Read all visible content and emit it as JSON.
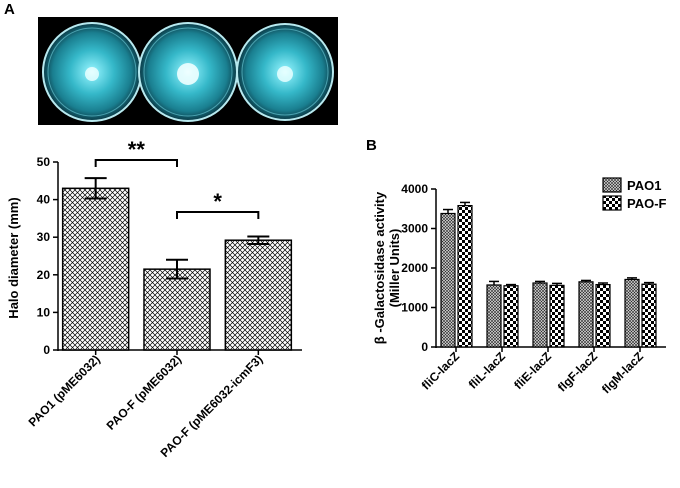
{
  "panels": {
    "a": {
      "letter": "A"
    },
    "b": {
      "letter": "B"
    }
  },
  "chart_data": [
    {
      "id": "a",
      "type": "bar",
      "categories": [
        "PAO1 (pME6032)",
        "PAO-F (pME6032)",
        "PAO-F (pME6032-icmF3)"
      ],
      "values": [
        43,
        21.5,
        29.2
      ],
      "errors": [
        2.7,
        2.5,
        1.0
      ],
      "ylabel": "Halo diameter (mm)",
      "ylim": [
        0,
        50
      ],
      "yticks": [
        0,
        10,
        20,
        30,
        40,
        50
      ],
      "significance": [
        {
          "from": 0,
          "to": 1,
          "label": "**"
        },
        {
          "from": 1,
          "to": 2,
          "label": "*"
        }
      ],
      "fill": "crosshatch",
      "grid": false
    },
    {
      "id": "b",
      "type": "bar",
      "categories": [
        "fliC-lacZ",
        "fliL-lacZ",
        "fliE-lacZ",
        "flgF-lacZ",
        "flgM-lacZ"
      ],
      "series": [
        {
          "name": "PAO1",
          "values": [
            3380,
            1570,
            1620,
            1650,
            1710
          ],
          "errors": [
            100,
            90,
            40,
            35,
            40
          ]
        },
        {
          "name": "PAO-F",
          "values": [
            3580,
            1550,
            1560,
            1580,
            1590
          ],
          "errors": [
            80,
            30,
            50,
            40,
            40
          ]
        }
      ],
      "ylabel": "β -Galactosidase activity\n(Miller Units)",
      "ylim": [
        0,
        4000
      ],
      "yticks": [
        0,
        1000,
        2000,
        3000,
        4000
      ],
      "legend": "top-right",
      "grid": false
    }
  ]
}
